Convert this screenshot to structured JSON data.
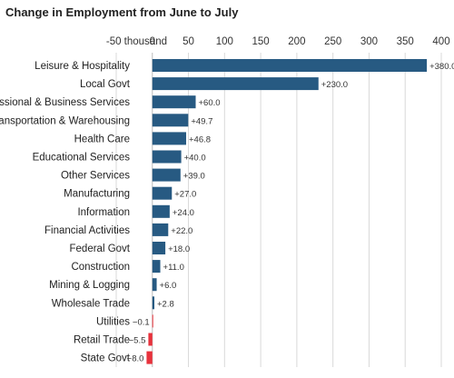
{
  "title": "Change in Employment from June to July",
  "chart_data": {
    "type": "bar",
    "orientation": "horizontal",
    "title": "Change in Employment from June to July",
    "x_axis": {
      "min": -50,
      "max": 400,
      "ticks": [
        -50,
        0,
        50,
        100,
        150,
        200,
        250,
        300,
        350,
        400
      ],
      "tick_labels": [
        "-50 thousand",
        "0",
        "50",
        "100",
        "150",
        "200",
        "250",
        "300",
        "350",
        "400"
      ],
      "position": "top"
    },
    "grid": true,
    "categories": [
      "Leisure & Hospitality",
      "Local Govt",
      "Professional & Business Services",
      "Transportation & Warehousing",
      "Health Care",
      "Educational Services",
      "Other Services",
      "Manufacturing",
      "Information",
      "Financial Activities",
      "Federal Govt",
      "Construction",
      "Mining & Logging",
      "Wholesale Trade",
      "Utilities",
      "Retail Trade",
      "State Govt"
    ],
    "values": [
      380.0,
      230.0,
      60.0,
      49.7,
      46.8,
      40.0,
      39.0,
      27.0,
      24.0,
      22.0,
      18.0,
      11.0,
      6.0,
      2.8,
      -0.1,
      -5.5,
      -8.0
    ],
    "data_labels": [
      "+380.0",
      "+230.0",
      "+60.0",
      "+49.7",
      "+46.8",
      "+40.0",
      "+39.0",
      "+27.0",
      "+24.0",
      "+22.0",
      "+18.0",
      "+11.0",
      "+6.0",
      "+2.8",
      "−0.1",
      "−5.5",
      "−8.0"
    ],
    "colors": {
      "positive": "#275a82",
      "negative": "#e8323c",
      "grid": "#d9d9d9",
      "zero_line": "#bbbbbb"
    }
  }
}
